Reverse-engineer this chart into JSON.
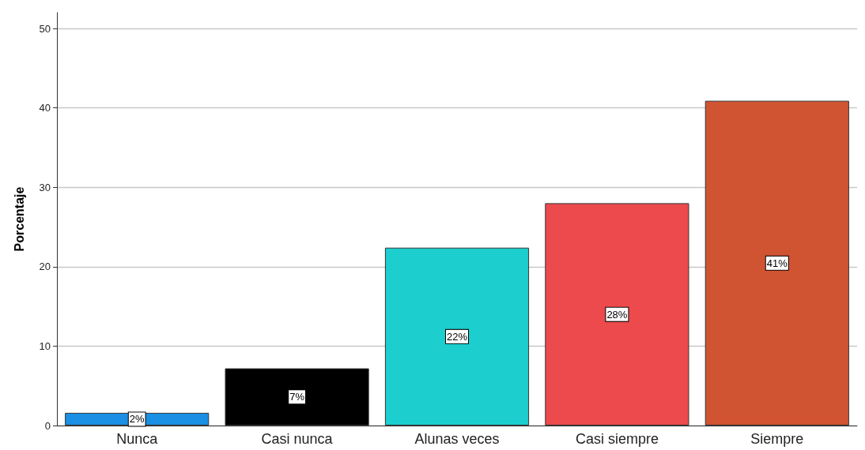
{
  "chart_data": {
    "type": "bar",
    "ylabel": "Porcentaje",
    "categories": [
      "Nunca",
      "Casi nunca",
      "Alunas veces",
      "Casi siempre",
      "Siempre"
    ],
    "values": [
      1.6,
      7.2,
      22.4,
      28.0,
      40.9
    ],
    "colors": [
      "#1a8fe3",
      "#000000",
      "#1ccece",
      "#ec4a4c",
      "#d05332"
    ],
    "value_labels": [
      "2%",
      "7%",
      "22%",
      "28%",
      "41%"
    ],
    "ylim": [
      0,
      52
    ],
    "yticks": [
      0,
      10,
      20,
      30,
      40,
      50
    ],
    "grid": "y"
  }
}
